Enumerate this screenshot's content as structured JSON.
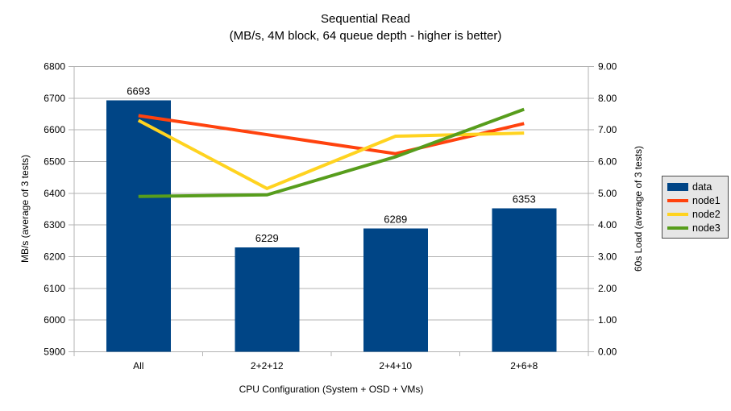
{
  "chart_data": {
    "type": "bar",
    "title": "Sequential Read",
    "subtitle": "(MB/s, 4M block, 64 queue depth - higher is better)",
    "categories": [
      "All",
      "2+2+12",
      "2+4+10",
      "2+6+8"
    ],
    "bar_series": {
      "name": "data",
      "color": "#004586",
      "axis": "left",
      "values": [
        6693,
        6229,
        6289,
        6353
      ],
      "data_labels": [
        "6693",
        "6229",
        "6289",
        "6353"
      ]
    },
    "line_series": [
      {
        "name": "node1",
        "color": "#ff420e",
        "axis": "right",
        "values": [
          7.45,
          6.85,
          6.25,
          7.2
        ]
      },
      {
        "name": "node2",
        "color": "#ffd320",
        "axis": "right",
        "values": [
          7.3,
          5.15,
          6.8,
          6.9
        ]
      },
      {
        "name": "node3",
        "color": "#579d1c",
        "axis": "right",
        "values": [
          4.9,
          4.95,
          6.15,
          7.65
        ]
      }
    ],
    "left_axis": {
      "title": "MB/s (average of 3 tests)",
      "min": 5900,
      "max": 6800,
      "step": 100,
      "decimals": 0
    },
    "right_axis": {
      "title": "60s Load (average of 3 tests)",
      "min": 0,
      "max": 9,
      "step": 1,
      "decimals": 2
    },
    "x_axis": {
      "title": "CPU Configuration (System + OSD + VMs)"
    },
    "grid": "horizontal",
    "legend_position": "right",
    "colors": {
      "grid": "#b3b3b3",
      "axis": "#b3b3b3",
      "text": "#000000",
      "background": "#ffffff",
      "legend_bg": "#e6e6e6",
      "legend_border": "#4d4d4d"
    }
  }
}
